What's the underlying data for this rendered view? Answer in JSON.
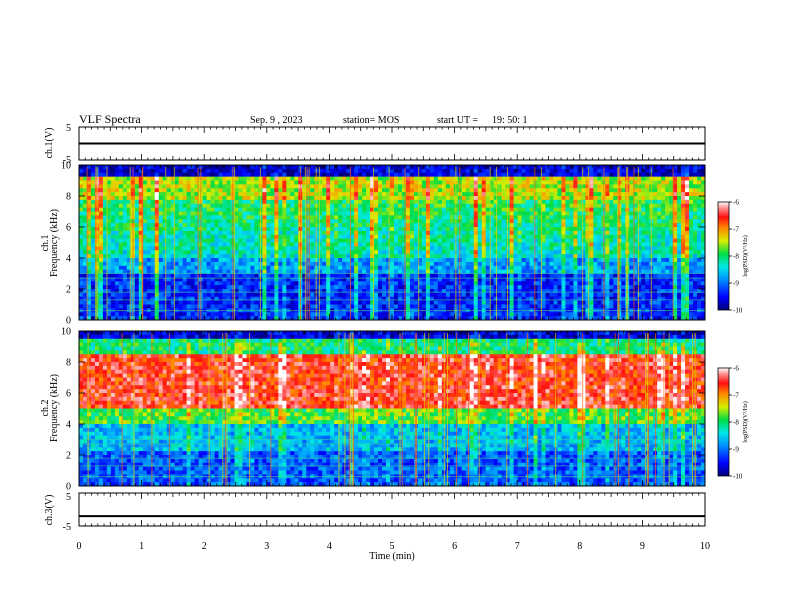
{
  "header": {
    "title": "VLF Spectra",
    "date": "Sep. 9 , 2023",
    "station": "station= MOS",
    "start": "start UT =",
    "start_time": "19: 50: 1"
  },
  "chart_data": [
    {
      "type": "line",
      "ylabel": "ch.1(V)",
      "ylim": [
        -5,
        5
      ],
      "yticks": [
        "5",
        "-5"
      ],
      "x": [
        0,
        10
      ],
      "y": [
        0,
        0
      ]
    },
    {
      "type": "heatmap",
      "ylabel": "ch.1",
      "ylabel2": "Frequency (kHz)",
      "ylim": [
        0,
        10
      ],
      "yticks": [
        "0",
        "2",
        "4",
        "6",
        "8",
        "10"
      ],
      "colorbar": {
        "label": "log(PSD)(V²/Hz)",
        "range": [
          -10,
          -6
        ],
        "ticks": [
          "-6",
          "-7",
          "-8",
          "-9",
          "-10"
        ]
      }
    },
    {
      "type": "heatmap",
      "ylabel": "ch.2",
      "ylabel2": "Frequency (kHz)",
      "ylim": [
        0,
        10
      ],
      "yticks": [
        "0",
        "2",
        "4",
        "6",
        "8",
        "10"
      ],
      "colorbar": {
        "label": "log(PSD)(V²/Hz)",
        "range": [
          -10,
          -6
        ],
        "ticks": [
          "-6",
          "-7",
          "-8",
          "-9",
          "-10"
        ]
      }
    },
    {
      "type": "line",
      "ylabel": "ch.3(V)",
      "ylim": [
        -5,
        5
      ],
      "yticks": [
        "5",
        "-5"
      ],
      "x": [
        0,
        10
      ],
      "y": [
        -2,
        -2
      ]
    }
  ],
  "xaxis": {
    "label": "Time (min)",
    "ticks": [
      "0",
      "1",
      "2",
      "3",
      "4",
      "5",
      "6",
      "7",
      "8",
      "9",
      "10"
    ],
    "xlim": [
      0,
      10
    ]
  }
}
